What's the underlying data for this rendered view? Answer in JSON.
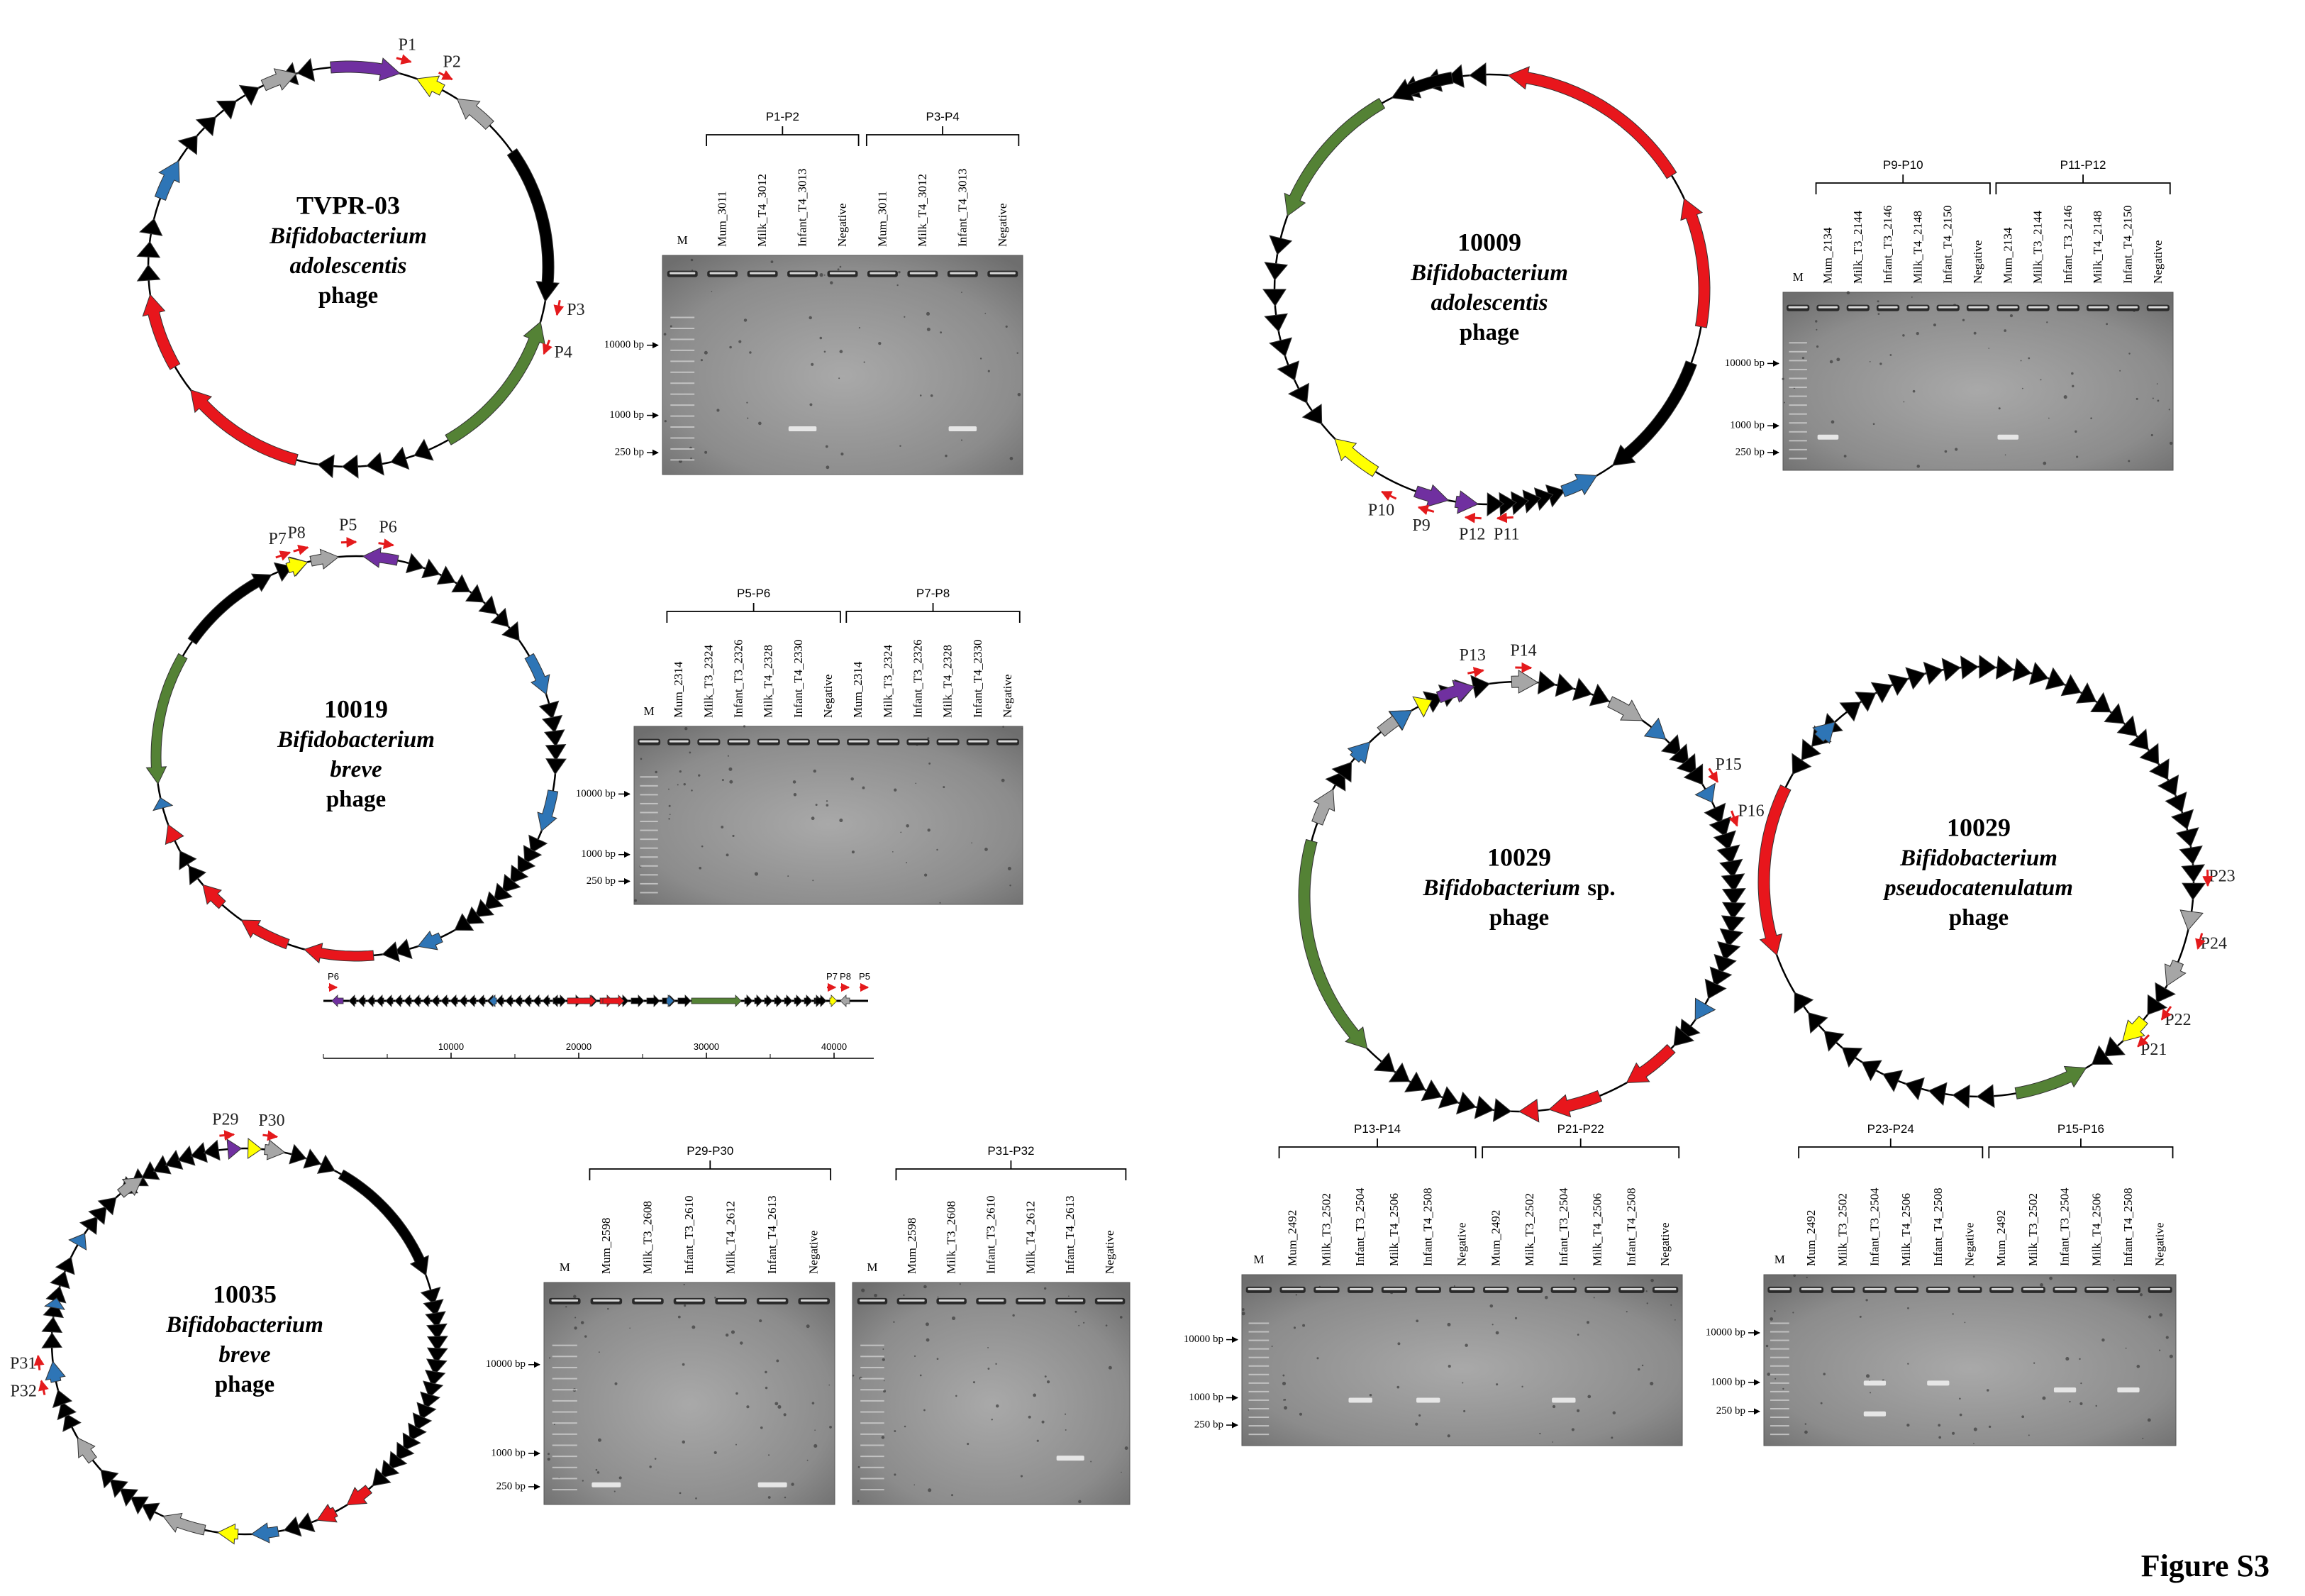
{
  "phages": [
    {
      "name": "TVPR-03",
      "lines": [
        {
          "text": "Bifidobacterium",
          "italic": true
        },
        {
          "text": "adolescentis",
          "italic": true
        },
        {
          "text": "phage",
          "italic": false
        }
      ],
      "primers": [
        "P1",
        "P2",
        "P3",
        "P4"
      ]
    },
    {
      "name": "10009",
      "lines": [
        {
          "text": "Bifidobacterium",
          "italic": true
        },
        {
          "text": "adolescentis",
          "italic": true
        },
        {
          "text": "phage",
          "italic": false
        }
      ],
      "primers": [
        "P10",
        "P9",
        "P12",
        "P11"
      ]
    },
    {
      "name": "10019",
      "lines": [
        {
          "text": "Bifidobacterium",
          "italic": true
        },
        {
          "text": "breve",
          "italic": true
        },
        {
          "text": "phage",
          "italic": false
        }
      ],
      "primers": [
        "P7",
        "P8",
        "P5",
        "P6"
      ]
    },
    {
      "name": "10029",
      "lines": [
        {
          "text": "Bifidobacterium",
          "italic": true,
          "suffix": "sp."
        },
        {
          "text": "phage",
          "italic": false
        }
      ],
      "primers": [
        "P13",
        "P14",
        "P15",
        "P16"
      ]
    },
    {
      "name": "10029",
      "lines": [
        {
          "text": "Bifidobacterium",
          "italic": true
        },
        {
          "text": "pseudocatenulatum",
          "italic": true
        },
        {
          "text": "phage",
          "italic": false
        }
      ],
      "primers": [
        "P23",
        "P24",
        "P22",
        "P21"
      ]
    },
    {
      "name": "10035",
      "lines": [
        {
          "text": "Bifidobacterium",
          "italic": true
        },
        {
          "text": "breve",
          "italic": true
        },
        {
          "text": "phage",
          "italic": false
        }
      ],
      "primers": [
        "P29",
        "P30",
        "P31",
        "P32"
      ]
    }
  ],
  "linear_map": {
    "primers": [
      "P6",
      "P7",
      "P8",
      "P5"
    ],
    "scale_ticks": [
      10000,
      20000,
      30000,
      40000
    ]
  },
  "gels": [
    {
      "marker": "M",
      "ladder": [
        "10000 bp",
        "1000 bp",
        "250 bp"
      ],
      "groups": [
        {
          "label": "P1-P2",
          "lanes": [
            "Mum_3011",
            "Milk_T4_3012",
            "Infant_T4_3013",
            "Negative"
          ]
        },
        {
          "label": "P3-P4",
          "lanes": [
            "Mum_3011",
            "Milk_T4_3012",
            "Infant_T4_3013",
            "Negative"
          ]
        }
      ]
    },
    {
      "marker": "M",
      "ladder": [
        "10000 bp",
        "1000 bp",
        "250 bp"
      ],
      "groups": [
        {
          "label": "P9-P10",
          "lanes": [
            "Mum_2134",
            "Milk_T3_2144",
            "Infant_T3_2146",
            "Milk_T4_2148",
            "Infant_T4_2150",
            "Negative"
          ]
        },
        {
          "label": "P11-P12",
          "lanes": [
            "Mum_2134",
            "Milk_T3_2144",
            "Infant_T3_2146",
            "Milk_T4_2148",
            "Infant_T4_2150",
            "Negative"
          ]
        }
      ]
    },
    {
      "marker": "M",
      "ladder": [
        "10000 bp",
        "1000 bp",
        "250 bp"
      ],
      "groups": [
        {
          "label": "P5-P6",
          "lanes": [
            "Mum_2314",
            "Milk_T3_2324",
            "Infant_T3_2326",
            "Milk_T4_2328",
            "Infant_T4_2330",
            "Negative"
          ]
        },
        {
          "label": "P7-P8",
          "lanes": [
            "Mum_2314",
            "Milk_T3_2324",
            "Infant_T3_2326",
            "Milk_T4_2328",
            "Infant_T4_2330",
            "Negative"
          ]
        }
      ]
    },
    {
      "marker": "M",
      "ladder": [
        "10000 bp",
        "1000 bp",
        "250 bp"
      ],
      "groups": [
        {
          "label": "P13-P14",
          "lanes": [
            "Mum_2492",
            "Milk_T3_2502",
            "Infant_T3_2504",
            "Milk_T4_2506",
            "Infant_T4_2508",
            "Negative"
          ]
        },
        {
          "label": "P21-P22",
          "lanes": [
            "Mum_2492",
            "Milk_T3_2502",
            "Infant_T3_2504",
            "Milk_T4_2506",
            "Infant_T4_2508",
            "Negative"
          ]
        }
      ]
    },
    {
      "marker": "M",
      "ladder": [
        "10000 bp",
        "1000 bp",
        "250 bp"
      ],
      "groups": [
        {
          "label": "P23-P24",
          "lanes": [
            "Mum_2492",
            "Milk_T3_2502",
            "Infant_T3_2504",
            "Milk_T4_2506",
            "Infant_T4_2508",
            "Negative"
          ]
        },
        {
          "label": "P15-P16",
          "lanes": [
            "Mum_2492",
            "Milk_T3_2502",
            "Infant_T3_2504",
            "Milk_T4_2506",
            "Infant_T4_2508",
            "Negative"
          ]
        }
      ]
    },
    {
      "marker": "M",
      "ladder": [
        "10000 bp",
        "1000 bp",
        "250 bp"
      ],
      "groups": [
        {
          "label": "P29-P30",
          "lanes": [
            "Mum_2598",
            "Milk_T3_2608",
            "Infant_T3_2610",
            "Milk_T4_2612",
            "Infant_T4_2613",
            "Negative"
          ]
        }
      ]
    },
    {
      "marker": "M",
      "groups": [
        {
          "label": "P31-P32",
          "lanes": [
            "Mum_2598",
            "Milk_T3_2608",
            "Infant_T3_2610",
            "Milk_T4_2612",
            "Infant_T4_2613",
            "Negative"
          ]
        }
      ]
    }
  ],
  "figure_label": "Figure S3"
}
